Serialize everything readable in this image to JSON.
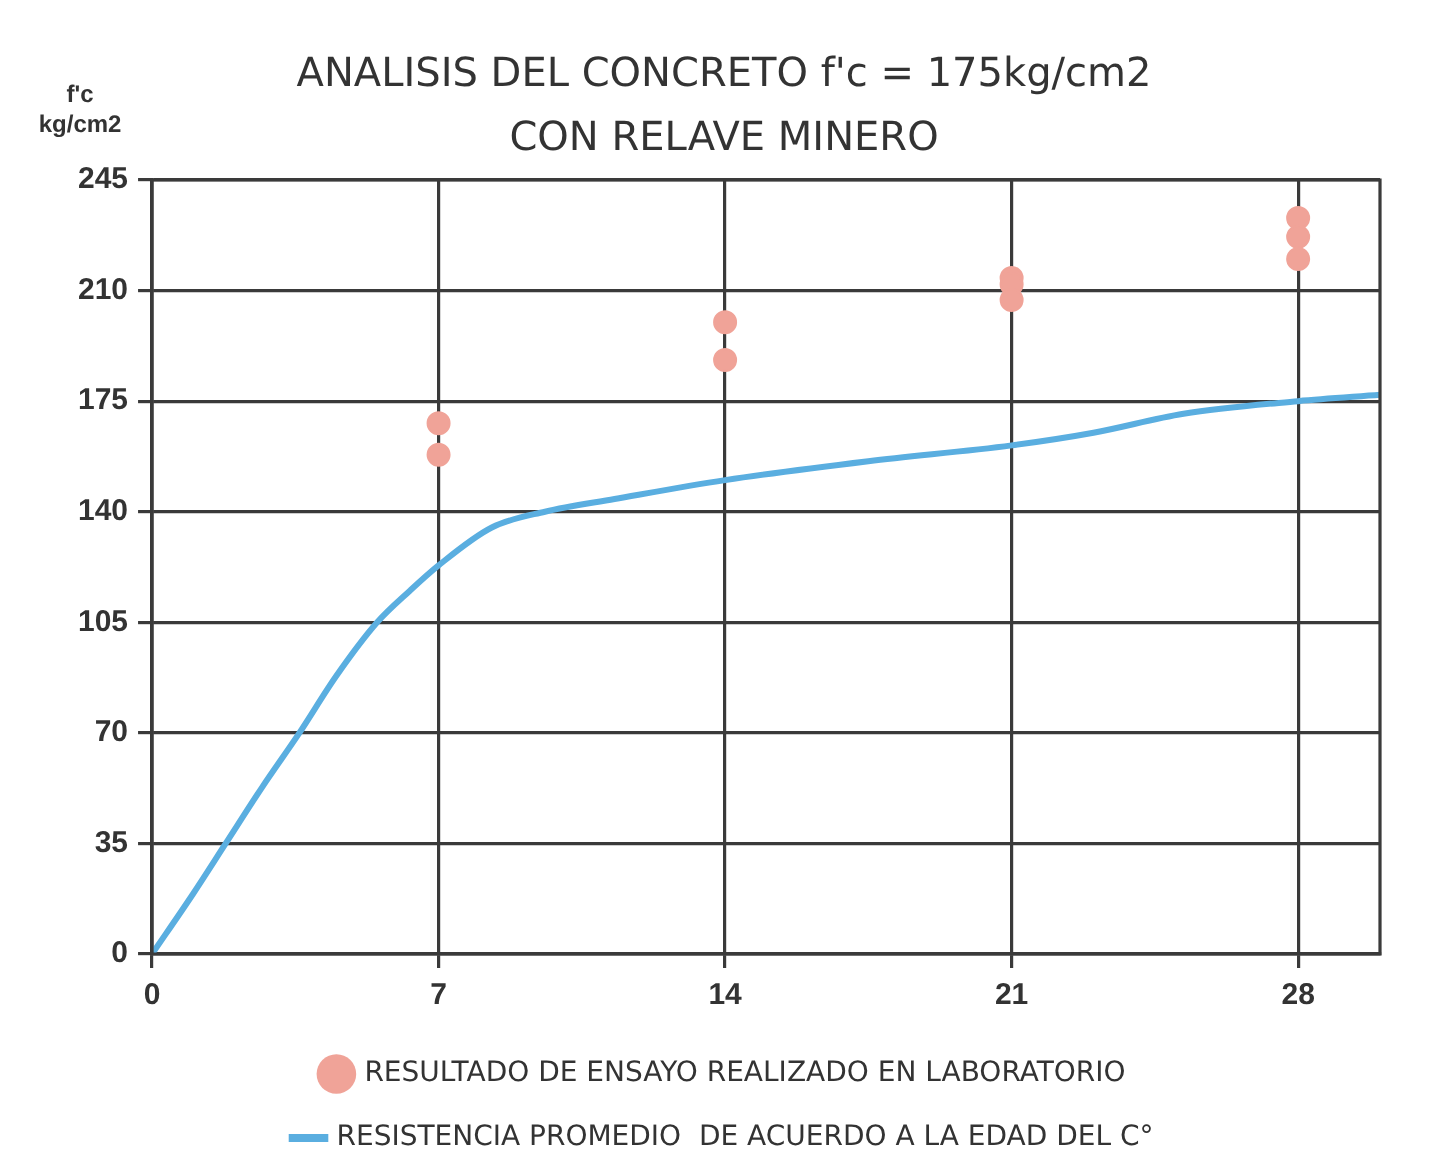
{
  "chart_data": {
    "type": "scatter",
    "title": "ANALISIS DEL CONCRETO f'c = 175kg/cm2",
    "subtitle": "CON RELAVE MINERO",
    "ylabel": "f'c\nkg/cm2",
    "xlim": [
      0,
      30
    ],
    "xticks": [
      0,
      7,
      14,
      21,
      28
    ],
    "ylim": [
      0,
      245
    ],
    "yticks": [
      0,
      35,
      70,
      105,
      140,
      175,
      210,
      245
    ],
    "grid": true,
    "legend": "bottom",
    "series": [
      {
        "name": "RESULTADO DE ENSAYO REALIZADO EN LABORATORIO",
        "color": "#f0a398",
        "marker": "circle",
        "x": [
          7,
          7,
          14,
          14,
          21,
          21,
          21,
          28,
          28,
          28
        ],
        "values": [
          168,
          158,
          200,
          188,
          214,
          212,
          207,
          233,
          227,
          220
        ]
      },
      {
        "type": "line",
        "name": "RESISTENCIA PROMEDIO  DE ACUERDO A LA EDAD DEL C°",
        "color": "#5aaee0",
        "marker": "none",
        "x": [
          0,
          1,
          1.8,
          2.7,
          3.6,
          4.5,
          5.5,
          6.3,
          7,
          8.3,
          9.6,
          11.3,
          14,
          17.5,
          21,
          23,
          25.2,
          28,
          30
        ],
        "values": [
          0,
          19,
          35,
          53,
          70,
          88,
          105,
          115,
          123,
          135,
          140,
          144,
          150,
          156,
          161,
          165,
          171,
          175,
          177
        ]
      }
    ]
  }
}
